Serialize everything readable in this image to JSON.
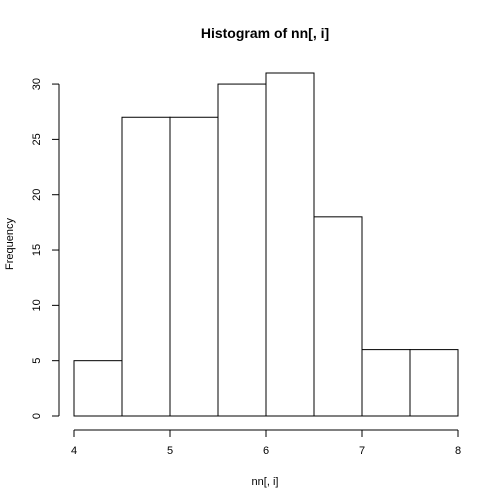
{
  "chart_data": {
    "type": "bar",
    "title": "Histogram of nn[, i]",
    "xlabel": "nn[, i]",
    "ylabel": "Frequency",
    "bins": [
      {
        "x0": 4.0,
        "x1": 4.5,
        "count": 5
      },
      {
        "x0": 4.5,
        "x1": 5.0,
        "count": 27
      },
      {
        "x0": 5.0,
        "x1": 5.5,
        "count": 27
      },
      {
        "x0": 5.5,
        "x1": 6.0,
        "count": 30
      },
      {
        "x0": 6.0,
        "x1": 6.5,
        "count": 31
      },
      {
        "x0": 6.5,
        "x1": 7.0,
        "count": 18
      },
      {
        "x0": 7.0,
        "x1": 7.5,
        "count": 6
      },
      {
        "x0": 7.5,
        "x1": 8.0,
        "count": 6
      }
    ],
    "xlim": [
      4,
      8
    ],
    "ylim": [
      0,
      31
    ],
    "x_ticks": [
      "4",
      "5",
      "6",
      "7",
      "8"
    ],
    "y_ticks": [
      "0",
      "5",
      "10",
      "15",
      "20",
      "25",
      "30"
    ],
    "grid": false,
    "legend": "none"
  }
}
